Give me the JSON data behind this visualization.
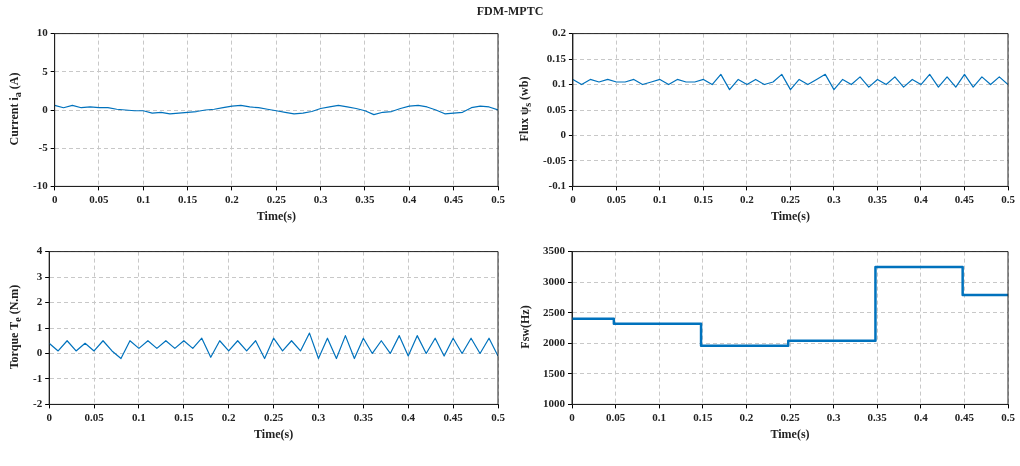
{
  "chart_data": [
    {
      "type": "line",
      "title": "FDM-MPTC",
      "xlabel": "Time(s)",
      "ylabel": "Current i$_{a}$ (A)",
      "xlim": [
        0,
        0.5
      ],
      "ylim": [
        -10,
        10
      ],
      "xticks": [
        0,
        0.05,
        0.1,
        0.15,
        0.2,
        0.25,
        0.3,
        0.35,
        0.4,
        0.45,
        0.5
      ],
      "yticks": [
        -10,
        -5,
        0,
        5,
        10
      ],
      "grid": true,
      "x": [
        0,
        0.01,
        0.02,
        0.03,
        0.04,
        0.05,
        0.06,
        0.07,
        0.08,
        0.09,
        0.1,
        0.11,
        0.12,
        0.13,
        0.14,
        0.15,
        0.16,
        0.17,
        0.18,
        0.19,
        0.2,
        0.21,
        0.22,
        0.23,
        0.24,
        0.25,
        0.26,
        0.27,
        0.28,
        0.29,
        0.3,
        0.31,
        0.32,
        0.33,
        0.34,
        0.35,
        0.36,
        0.37,
        0.38,
        0.39,
        0.4,
        0.41,
        0.42,
        0.43,
        0.44,
        0.45,
        0.46,
        0.47,
        0.48,
        0.49,
        0.5
      ],
      "series": [
        {
          "color": "#0072bd",
          "values": [
            0.6,
            0.3,
            0.6,
            0.3,
            0.4,
            0.3,
            0.3,
            0.1,
            0.0,
            -0.1,
            -0.1,
            -0.4,
            -0.3,
            -0.5,
            -0.4,
            -0.3,
            -0.2,
            0.0,
            0.1,
            0.3,
            0.5,
            0.6,
            0.4,
            0.3,
            0.1,
            -0.1,
            -0.3,
            -0.5,
            -0.4,
            -0.2,
            0.2,
            0.4,
            0.6,
            0.4,
            0.2,
            -0.1,
            -0.6,
            -0.3,
            -0.2,
            0.2,
            0.5,
            0.6,
            0.4,
            0.0,
            -0.5,
            -0.4,
            -0.3,
            0.3,
            0.5,
            0.4,
            0.0
          ]
        }
      ]
    },
    {
      "type": "line",
      "xlabel": "Time(s)",
      "ylabel": "Flux ψ$_{s}$ (wb)",
      "xlim": [
        0,
        0.5
      ],
      "ylim": [
        -0.1,
        0.2
      ],
      "xticks": [
        0,
        0.05,
        0.1,
        0.15,
        0.2,
        0.25,
        0.3,
        0.35,
        0.4,
        0.45,
        0.5
      ],
      "yticks": [
        -0.1,
        -0.05,
        0,
        0.05,
        0.1,
        0.15,
        0.2
      ],
      "grid": true,
      "x": [
        0,
        0.01,
        0.02,
        0.03,
        0.04,
        0.05,
        0.06,
        0.07,
        0.08,
        0.09,
        0.1,
        0.11,
        0.12,
        0.13,
        0.14,
        0.15,
        0.16,
        0.17,
        0.18,
        0.19,
        0.2,
        0.21,
        0.22,
        0.23,
        0.24,
        0.25,
        0.26,
        0.27,
        0.28,
        0.29,
        0.3,
        0.31,
        0.32,
        0.33,
        0.34,
        0.35,
        0.36,
        0.37,
        0.38,
        0.39,
        0.4,
        0.41,
        0.42,
        0.43,
        0.44,
        0.45,
        0.46,
        0.47,
        0.48,
        0.49,
        0.5
      ],
      "series": [
        {
          "color": "#0072bd",
          "values": [
            0.11,
            0.1,
            0.11,
            0.105,
            0.11,
            0.105,
            0.105,
            0.11,
            0.1,
            0.105,
            0.11,
            0.1,
            0.11,
            0.105,
            0.105,
            0.11,
            0.1,
            0.12,
            0.09,
            0.11,
            0.1,
            0.11,
            0.1,
            0.105,
            0.12,
            0.09,
            0.11,
            0.1,
            0.11,
            0.12,
            0.09,
            0.11,
            0.1,
            0.115,
            0.095,
            0.11,
            0.1,
            0.115,
            0.095,
            0.11,
            0.1,
            0.12,
            0.095,
            0.115,
            0.095,
            0.12,
            0.095,
            0.115,
            0.1,
            0.115,
            0.1
          ]
        }
      ]
    },
    {
      "type": "line",
      "xlabel": "Time(s)",
      "ylabel": "Torque T$_{e}$ (N.m)",
      "xlim": [
        0,
        0.5
      ],
      "ylim": [
        -2,
        4
      ],
      "xticks": [
        0,
        0.05,
        0.1,
        0.15,
        0.2,
        0.25,
        0.3,
        0.35,
        0.4,
        0.45,
        0.5
      ],
      "yticks": [
        -2,
        -1,
        0,
        1,
        2,
        3,
        4
      ],
      "grid": true,
      "x": [
        0,
        0.01,
        0.02,
        0.03,
        0.04,
        0.05,
        0.06,
        0.07,
        0.08,
        0.09,
        0.1,
        0.11,
        0.12,
        0.13,
        0.14,
        0.15,
        0.16,
        0.17,
        0.18,
        0.19,
        0.2,
        0.21,
        0.22,
        0.23,
        0.24,
        0.25,
        0.26,
        0.27,
        0.28,
        0.29,
        0.3,
        0.31,
        0.32,
        0.33,
        0.34,
        0.35,
        0.36,
        0.37,
        0.38,
        0.39,
        0.4,
        0.41,
        0.42,
        0.43,
        0.44,
        0.45,
        0.46,
        0.47,
        0.48,
        0.49,
        0.5
      ],
      "series": [
        {
          "color": "#0072bd",
          "values": [
            0.4,
            0.1,
            0.5,
            0.1,
            0.4,
            0.1,
            0.5,
            0.1,
            -0.2,
            0.5,
            0.2,
            0.5,
            0.2,
            0.5,
            0.2,
            0.5,
            0.2,
            0.6,
            -0.15,
            0.5,
            0.1,
            0.5,
            0.1,
            0.5,
            -0.2,
            0.6,
            0.1,
            0.5,
            0.1,
            0.8,
            -0.2,
            0.6,
            -0.2,
            0.7,
            -0.2,
            0.6,
            0.0,
            0.5,
            0.0,
            0.7,
            -0.1,
            0.7,
            0.0,
            0.6,
            -0.1,
            0.6,
            0.0,
            0.6,
            0.0,
            0.6,
            -0.1
          ]
        }
      ]
    },
    {
      "type": "step",
      "xlabel": "Time(s)",
      "ylabel": "Fsw(Hz)",
      "xlim": [
        0,
        0.5
      ],
      "ylim": [
        1000,
        3500
      ],
      "xticks": [
        0,
        0.05,
        0.1,
        0.15,
        0.2,
        0.25,
        0.3,
        0.35,
        0.4,
        0.45,
        0.5
      ],
      "yticks": [
        1000,
        1500,
        2000,
        2500,
        3000,
        3500
      ],
      "grid": true,
      "x": [
        0,
        0.048,
        0.148,
        0.248,
        0.348,
        0.448,
        0.5
      ],
      "series": [
        {
          "color": "#0072bd",
          "values": [
            2400,
            2320,
            1960,
            2040,
            3250,
            2790,
            2790
          ]
        }
      ]
    }
  ]
}
